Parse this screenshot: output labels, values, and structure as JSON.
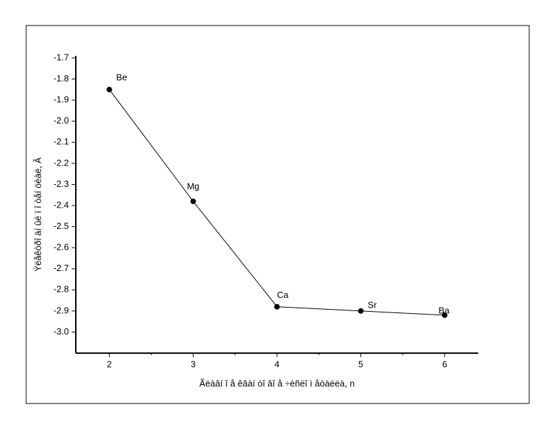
{
  "chart_data": {
    "type": "line",
    "xlabel": "Ãëàâí î å êâàí òî âî å ÷èñëî  ì åòàëëà, n",
    "ylabel": "Ýëåêòðî äí ûé ï î òåí öèàë, Â",
    "x": [
      2,
      3,
      4,
      5,
      6
    ],
    "point_labels": [
      "Be",
      "Mg",
      "Ca",
      "Sr",
      "Ba"
    ],
    "series": [
      {
        "color": "#000000",
        "values": [
          -1.85,
          -2.38,
          -2.88,
          -2.9,
          -2.92
        ]
      }
    ],
    "xlim": [
      1.6,
      6.4
    ],
    "xticks": [
      2,
      3,
      4,
      5,
      6
    ],
    "xminorticks": [
      2.5,
      3.5,
      4.5,
      5.5
    ],
    "ylim": [
      -3.1,
      -1.7
    ],
    "yticks": [
      -1.7,
      -1.8,
      -1.9,
      {
        "value": -2,
        "label": "-2.0"
      },
      -2.1,
      -2.2,
      -2.3,
      -2.4,
      -2.5,
      -2.6,
      -2.7,
      -2.8,
      -2.9,
      {
        "value": -3,
        "label": "-3.0"
      }
    ]
  }
}
